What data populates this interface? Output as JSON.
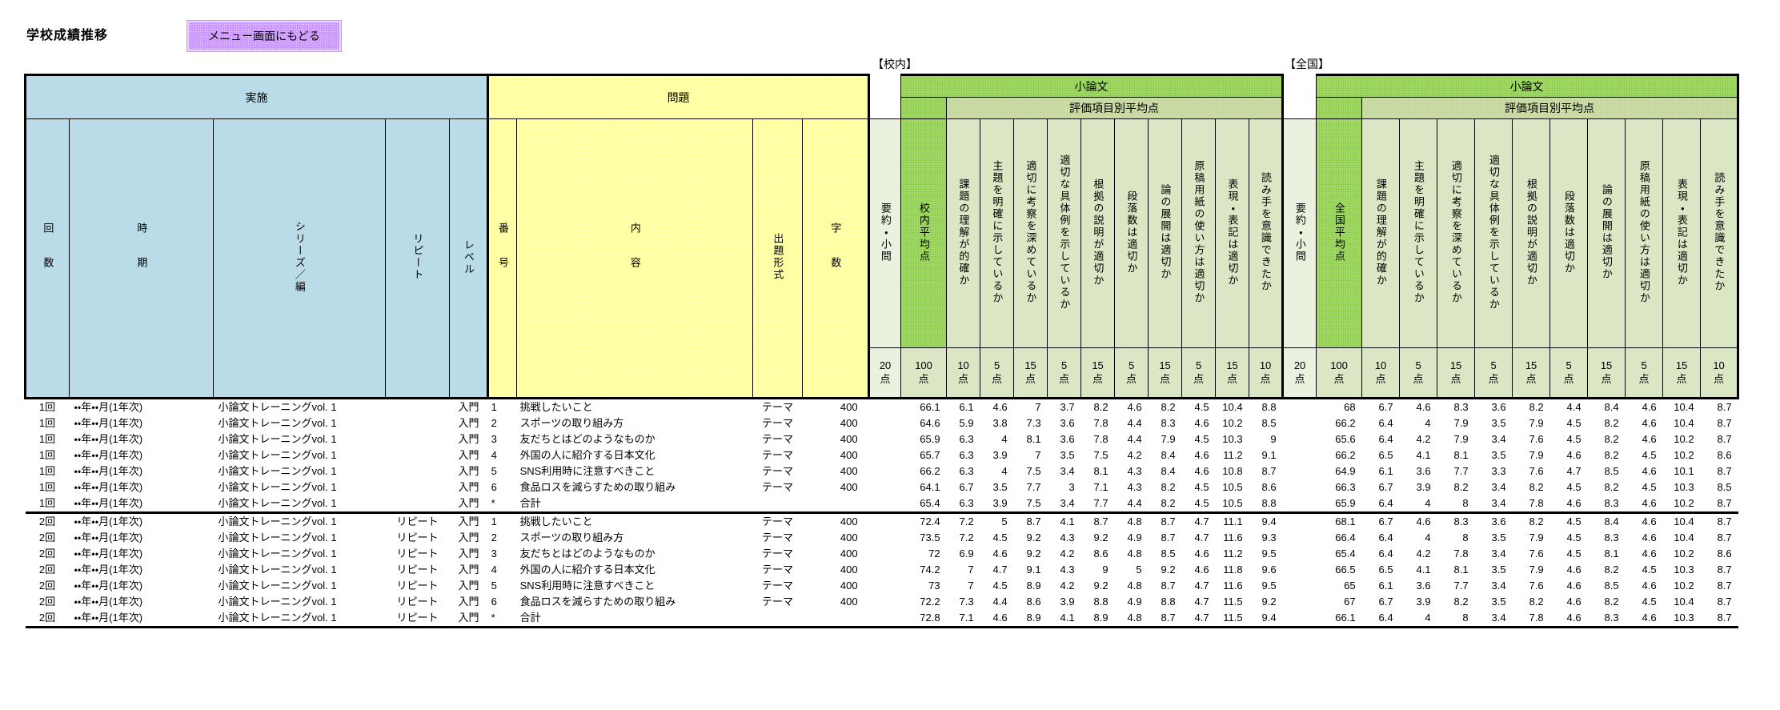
{
  "title": "学校成績推移",
  "menu_button_label": "メニュー画面にもどる",
  "section_labels": {
    "school": "【校内】",
    "national": "【全国】"
  },
  "headers": {
    "jisshi": "実施",
    "mondai": "問題",
    "shoronbun": "小論文",
    "hyoka_heikin": "評価項目別平均点",
    "kaisu": "回数",
    "jiki": "時期",
    "series": "シリーズ／編",
    "repeat": "リピート",
    "level": "レベル",
    "bango": "番号",
    "naiyo": "内容",
    "keishiki": "出題形式",
    "jisu": "字数",
    "yoyaku_komon": "要約・小問",
    "konai_heikin": "校内平均点",
    "zenkoku_heikin": "全国平均点",
    "eval_items": [
      "課題の理解が的確か",
      "主題を明確に示しているか",
      "適切に考察を深めているか",
      "適切な具体例を示しているか",
      "根拠の説明が適切か",
      "段落数は適切か",
      "論の展開は適切か",
      "原稿用紙の使い方は適切か",
      "表現・表記は適切か",
      "読み手を意識できたか"
    ]
  },
  "points": {
    "yoyaku": "20\n点",
    "heikin": "100\n点",
    "items": [
      "10\n点",
      "5\n点",
      "15\n点",
      "5\n点",
      "15\n点",
      "5\n点",
      "15\n点",
      "5\n点",
      "15\n点",
      "10\n点"
    ]
  },
  "rows": [
    {
      "kaisu": "1回",
      "jiki": "・・年・・月(1年次)",
      "series": "小論文トレーニングvol. 1",
      "repeat": "",
      "level": "入門",
      "bango": "1",
      "naiyo": "挑戦したいこと",
      "keishiki": "テーマ",
      "jisu": "400",
      "konai_avg": "66.1",
      "konai_items": [
        "6.1",
        "4.6",
        "7",
        "3.7",
        "8.2",
        "4.6",
        "8.2",
        "4.5",
        "10.4",
        "8.8"
      ],
      "zenkoku_avg": "68",
      "zenkoku_items": [
        "6.7",
        "4.6",
        "8.3",
        "3.6",
        "8.2",
        "4.4",
        "8.4",
        "4.6",
        "10.4",
        "8.7"
      ]
    },
    {
      "kaisu": "1回",
      "jiki": "・・年・・月(1年次)",
      "series": "小論文トレーニングvol. 1",
      "repeat": "",
      "level": "入門",
      "bango": "2",
      "naiyo": "スポーツの取り組み方",
      "keishiki": "テーマ",
      "jisu": "400",
      "konai_avg": "64.6",
      "konai_items": [
        "5.9",
        "3.8",
        "7.3",
        "3.6",
        "7.8",
        "4.4",
        "8.3",
        "4.6",
        "10.2",
        "8.5"
      ],
      "zenkoku_avg": "66.2",
      "zenkoku_items": [
        "6.4",
        "4",
        "7.9",
        "3.5",
        "7.9",
        "4.5",
        "8.2",
        "4.6",
        "10.4",
        "8.7"
      ]
    },
    {
      "kaisu": "1回",
      "jiki": "・・年・・月(1年次)",
      "series": "小論文トレーニングvol. 1",
      "repeat": "",
      "level": "入門",
      "bango": "3",
      "naiyo": "友だちとはどのようなものか",
      "keishiki": "テーマ",
      "jisu": "400",
      "konai_avg": "65.9",
      "konai_items": [
        "6.3",
        "4",
        "8.1",
        "3.6",
        "7.8",
        "4.4",
        "7.9",
        "4.5",
        "10.3",
        "9"
      ],
      "zenkoku_avg": "65.6",
      "zenkoku_items": [
        "6.4",
        "4.2",
        "7.9",
        "3.4",
        "7.6",
        "4.5",
        "8.2",
        "4.6",
        "10.2",
        "8.7"
      ]
    },
    {
      "kaisu": "1回",
      "jiki": "・・年・・月(1年次)",
      "series": "小論文トレーニングvol. 1",
      "repeat": "",
      "level": "入門",
      "bango": "4",
      "naiyo": "外国の人に紹介する日本文化",
      "keishiki": "テーマ",
      "jisu": "400",
      "konai_avg": "65.7",
      "konai_items": [
        "6.3",
        "3.9",
        "7",
        "3.5",
        "7.5",
        "4.2",
        "8.4",
        "4.6",
        "11.2",
        "9.1"
      ],
      "zenkoku_avg": "66.2",
      "zenkoku_items": [
        "6.5",
        "4.1",
        "8.1",
        "3.5",
        "7.9",
        "4.6",
        "8.2",
        "4.5",
        "10.2",
        "8.6"
      ]
    },
    {
      "kaisu": "1回",
      "jiki": "・・年・・月(1年次)",
      "series": "小論文トレーニングvol. 1",
      "repeat": "",
      "level": "入門",
      "bango": "5",
      "naiyo": "SNS利用時に注意すべきこと",
      "keishiki": "テーマ",
      "jisu": "400",
      "konai_avg": "66.2",
      "konai_items": [
        "6.3",
        "4",
        "7.5",
        "3.4",
        "8.1",
        "4.3",
        "8.4",
        "4.6",
        "10.8",
        "8.7"
      ],
      "zenkoku_avg": "64.9",
      "zenkoku_items": [
        "6.1",
        "3.6",
        "7.7",
        "3.3",
        "7.6",
        "4.7",
        "8.5",
        "4.6",
        "10.1",
        "8.7"
      ]
    },
    {
      "kaisu": "1回",
      "jiki": "・・年・・月(1年次)",
      "series": "小論文トレーニングvol. 1",
      "repeat": "",
      "level": "入門",
      "bango": "6",
      "naiyo": "食品ロスを減らすための取り組み",
      "keishiki": "テーマ",
      "jisu": "400",
      "konai_avg": "64.1",
      "konai_items": [
        "6.7",
        "3.5",
        "7.7",
        "3",
        "7.1",
        "4.3",
        "8.2",
        "4.5",
        "10.5",
        "8.6"
      ],
      "zenkoku_avg": "66.3",
      "zenkoku_items": [
        "6.7",
        "3.9",
        "8.2",
        "3.4",
        "8.2",
        "4.5",
        "8.2",
        "4.5",
        "10.3",
        "8.5"
      ]
    },
    {
      "kaisu": "1回",
      "jiki": "・・年・・月(1年次)",
      "series": "小論文トレーニングvol. 1",
      "repeat": "",
      "level": "入門",
      "bango": "*",
      "naiyo": "合計",
      "keishiki": "",
      "jisu": "",
      "konai_avg": "65.4",
      "konai_items": [
        "6.3",
        "3.9",
        "7.5",
        "3.4",
        "7.7",
        "4.4",
        "8.2",
        "4.5",
        "10.5",
        "8.8"
      ],
      "zenkoku_avg": "65.9",
      "zenkoku_items": [
        "6.4",
        "4",
        "8",
        "3.4",
        "7.8",
        "4.6",
        "8.3",
        "4.6",
        "10.2",
        "8.7"
      ]
    },
    {
      "kaisu": "2回",
      "jiki": "・・年・・月(1年次)",
      "series": "小論文トレーニングvol. 1",
      "repeat": "リピート",
      "level": "入門",
      "bango": "1",
      "naiyo": "挑戦したいこと",
      "keishiki": "テーマ",
      "jisu": "400",
      "konai_avg": "72.4",
      "konai_items": [
        "7.2",
        "5",
        "8.7",
        "4.1",
        "8.7",
        "4.8",
        "8.7",
        "4.7",
        "11.1",
        "9.4"
      ],
      "zenkoku_avg": "68.1",
      "zenkoku_items": [
        "6.7",
        "4.6",
        "8.3",
        "3.6",
        "8.2",
        "4.5",
        "8.4",
        "4.6",
        "10.4",
        "8.7"
      ]
    },
    {
      "kaisu": "2回",
      "jiki": "・・年・・月(1年次)",
      "series": "小論文トレーニングvol. 1",
      "repeat": "リピート",
      "level": "入門",
      "bango": "2",
      "naiyo": "スポーツの取り組み方",
      "keishiki": "テーマ",
      "jisu": "400",
      "konai_avg": "73.5",
      "konai_items": [
        "7.2",
        "4.5",
        "9.2",
        "4.3",
        "9.2",
        "4.9",
        "8.7",
        "4.7",
        "11.6",
        "9.3"
      ],
      "zenkoku_avg": "66.4",
      "zenkoku_items": [
        "6.4",
        "4",
        "8",
        "3.5",
        "7.9",
        "4.5",
        "8.3",
        "4.6",
        "10.4",
        "8.7"
      ]
    },
    {
      "kaisu": "2回",
      "jiki": "・・年・・月(1年次)",
      "series": "小論文トレーニングvol. 1",
      "repeat": "リピート",
      "level": "入門",
      "bango": "3",
      "naiyo": "友だちとはどのようなものか",
      "keishiki": "テーマ",
      "jisu": "400",
      "konai_avg": "72",
      "konai_items": [
        "6.9",
        "4.6",
        "9.2",
        "4.2",
        "8.6",
        "4.8",
        "8.5",
        "4.6",
        "11.2",
        "9.5"
      ],
      "zenkoku_avg": "65.4",
      "zenkoku_items": [
        "6.4",
        "4.2",
        "7.8",
        "3.4",
        "7.6",
        "4.5",
        "8.1",
        "4.6",
        "10.2",
        "8.6"
      ]
    },
    {
      "kaisu": "2回",
      "jiki": "・・年・・月(1年次)",
      "series": "小論文トレーニングvol. 1",
      "repeat": "リピート",
      "level": "入門",
      "bango": "4",
      "naiyo": "外国の人に紹介する日本文化",
      "keishiki": "テーマ",
      "jisu": "400",
      "konai_avg": "74.2",
      "konai_items": [
        "7",
        "4.7",
        "9.1",
        "4.3",
        "9",
        "5",
        "9.2",
        "4.6",
        "11.8",
        "9.6"
      ],
      "zenkoku_avg": "66.5",
      "zenkoku_items": [
        "6.5",
        "4.1",
        "8.1",
        "3.5",
        "7.9",
        "4.6",
        "8.2",
        "4.5",
        "10.3",
        "8.7"
      ]
    },
    {
      "kaisu": "2回",
      "jiki": "・・年・・月(1年次)",
      "series": "小論文トレーニングvol. 1",
      "repeat": "リピート",
      "level": "入門",
      "bango": "5",
      "naiyo": "SNS利用時に注意すべきこと",
      "keishiki": "テーマ",
      "jisu": "400",
      "konai_avg": "73",
      "konai_items": [
        "7",
        "4.5",
        "8.9",
        "4.2",
        "9.2",
        "4.8",
        "8.7",
        "4.7",
        "11.6",
        "9.5"
      ],
      "zenkoku_avg": "65",
      "zenkoku_items": [
        "6.1",
        "3.6",
        "7.7",
        "3.4",
        "7.6",
        "4.6",
        "8.5",
        "4.6",
        "10.2",
        "8.7"
      ]
    },
    {
      "kaisu": "2回",
      "jiki": "・・年・・月(1年次)",
      "series": "小論文トレーニングvol. 1",
      "repeat": "リピート",
      "level": "入門",
      "bango": "6",
      "naiyo": "食品ロスを減らすための取り組み",
      "keishiki": "テーマ",
      "jisu": "400",
      "konai_avg": "72.2",
      "konai_items": [
        "7.3",
        "4.4",
        "8.6",
        "3.9",
        "8.8",
        "4.9",
        "8.8",
        "4.7",
        "11.5",
        "9.2"
      ],
      "zenkoku_avg": "67",
      "zenkoku_items": [
        "6.7",
        "3.9",
        "8.2",
        "3.5",
        "8.2",
        "4.6",
        "8.2",
        "4.5",
        "10.4",
        "8.7"
      ]
    },
    {
      "kaisu": "2回",
      "jiki": "・・年・・月(1年次)",
      "series": "小論文トレーニングvol. 1",
      "repeat": "リピート",
      "level": "入門",
      "bango": "*",
      "naiyo": "合計",
      "keishiki": "",
      "jisu": "",
      "konai_avg": "72.8",
      "konai_items": [
        "7.1",
        "4.6",
        "8.9",
        "4.1",
        "8.9",
        "4.8",
        "8.7",
        "4.7",
        "11.5",
        "9.4"
      ],
      "zenkoku_avg": "66.1",
      "zenkoku_items": [
        "6.4",
        "4",
        "8",
        "3.4",
        "7.8",
        "4.6",
        "8.3",
        "4.6",
        "10.3",
        "8.7"
      ]
    }
  ]
}
